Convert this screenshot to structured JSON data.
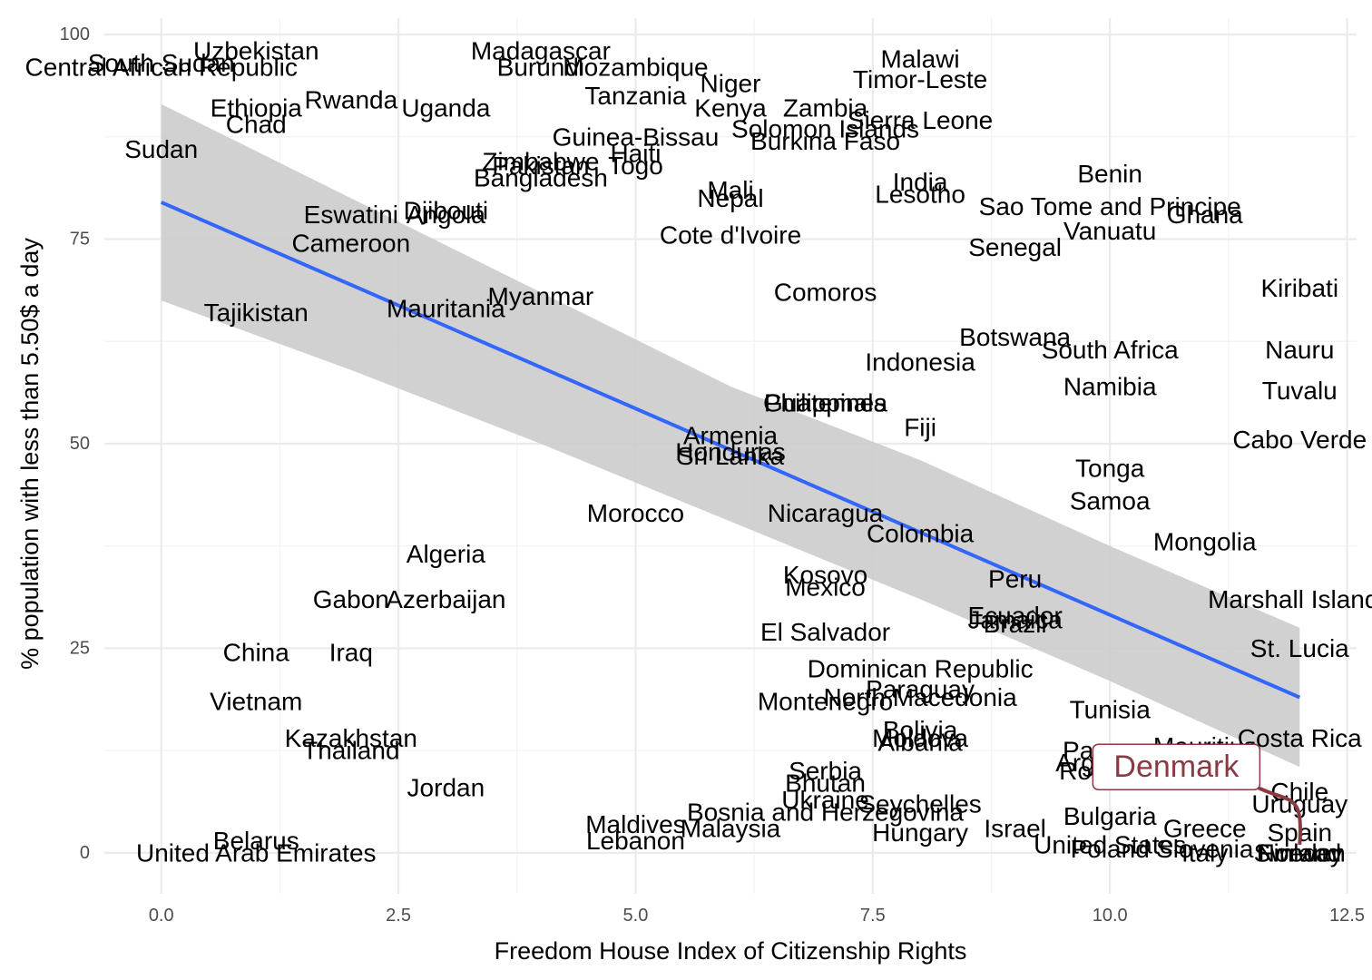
{
  "chart_data": {
    "type": "scatter",
    "title": "",
    "xlabel": "Freedom House Index of Citizenship Rights",
    "ylabel": "% population with less than 5.50$ a day",
    "xlim": [
      -0.6,
      12.6
    ],
    "ylim": [
      -5,
      102
    ],
    "x_ticks": [
      0.0,
      2.5,
      5.0,
      7.5,
      10.0,
      12.5
    ],
    "x_tick_labels": [
      "0.0",
      "2.5",
      "5.0",
      "7.5",
      "10.0",
      "12.5"
    ],
    "y_ticks": [
      0,
      25,
      50,
      75,
      100
    ],
    "y_tick_labels": [
      "0",
      "25",
      "50",
      "75",
      "100"
    ],
    "grid": true,
    "trend_line": {
      "x": [
        0,
        12
      ],
      "y": [
        79.5,
        19.0
      ],
      "color": "#3366ff"
    },
    "confidence_band": {
      "x": [
        0,
        2,
        4,
        6,
        8,
        10,
        12
      ],
      "lower": [
        67.5,
        59.0,
        50.0,
        40.5,
        31.0,
        21.0,
        10.5
      ],
      "upper": [
        91.5,
        80.0,
        68.5,
        57.0,
        48.0,
        37.5,
        27.5
      ],
      "color": "#cccccc"
    },
    "highlight": {
      "label": "Denmark",
      "color": "#8b3a44",
      "point": [
        12,
        1.0
      ],
      "label_position": [
        10.7,
        10.5
      ]
    },
    "points": [
      {
        "label": "Uzbekistan",
        "x": 1.0,
        "y": 98.0
      },
      {
        "label": "South Sudan",
        "x": 0.0,
        "y": 96.5
      },
      {
        "label": "Central African Republic",
        "x": 0.0,
        "y": 96.0
      },
      {
        "label": "Rwanda",
        "x": 2.0,
        "y": 92.0
      },
      {
        "label": "Ethiopia",
        "x": 1.0,
        "y": 91.0
      },
      {
        "label": "Chad",
        "x": 1.0,
        "y": 89.0
      },
      {
        "label": "Uganda",
        "x": 3.0,
        "y": 91.0
      },
      {
        "label": "Sudan",
        "x": 0.0,
        "y": 86.0
      },
      {
        "label": "Madagascar",
        "x": 4.0,
        "y": 98.0
      },
      {
        "label": "Burundi",
        "x": 4.0,
        "y": 96.0
      },
      {
        "label": "Mozambique",
        "x": 5.0,
        "y": 96.0
      },
      {
        "label": "Niger",
        "x": 6.0,
        "y": 94.0
      },
      {
        "label": "Tanzania",
        "x": 5.0,
        "y": 92.5
      },
      {
        "label": "Kenya",
        "x": 6.0,
        "y": 91.0
      },
      {
        "label": "Zambia",
        "x": 7.0,
        "y": 91.0
      },
      {
        "label": "Malawi",
        "x": 8.0,
        "y": 97.0
      },
      {
        "label": "Timor-Leste",
        "x": 8.0,
        "y": 94.5
      },
      {
        "label": "Sierra Leone",
        "x": 8.0,
        "y": 89.5
      },
      {
        "label": "Solomon Islands",
        "x": 7.0,
        "y": 88.5
      },
      {
        "label": "Burkina Faso",
        "x": 7.0,
        "y": 87.0
      },
      {
        "label": "Guinea-Bissau",
        "x": 5.0,
        "y": 87.5
      },
      {
        "label": "Zimbabwe",
        "x": 4.0,
        "y": 84.5
      },
      {
        "label": "Haiti",
        "x": 5.0,
        "y": 85.5
      },
      {
        "label": "Pakistan",
        "x": 4.0,
        "y": 84.0
      },
      {
        "label": "Togo",
        "x": 5.0,
        "y": 84.0
      },
      {
        "label": "Bangladesh",
        "x": 4.0,
        "y": 82.5
      },
      {
        "label": "Benin",
        "x": 10.0,
        "y": 83.0
      },
      {
        "label": "India",
        "x": 8.0,
        "y": 82.0
      },
      {
        "label": "Lesotho",
        "x": 8.0,
        "y": 80.5
      },
      {
        "label": "Mali",
        "x": 6.0,
        "y": 81.0
      },
      {
        "label": "Nepal",
        "x": 6.0,
        "y": 80.0
      },
      {
        "label": "Sao Tome and Principe",
        "x": 10.0,
        "y": 79.0
      },
      {
        "label": "Ghana",
        "x": 11.0,
        "y": 78.0
      },
      {
        "label": "Vanuatu",
        "x": 10.0,
        "y": 76.0
      },
      {
        "label": "Eswatini",
        "x": 2.0,
        "y": 78.0
      },
      {
        "label": "Djibouti",
        "x": 3.0,
        "y": 78.5
      },
      {
        "label": "Angola",
        "x": 3.0,
        "y": 78.0
      },
      {
        "label": "Cameroon",
        "x": 2.0,
        "y": 74.5
      },
      {
        "label": "Cote d'Ivoire",
        "x": 6.0,
        "y": 75.5
      },
      {
        "label": "Senegal",
        "x": 9.0,
        "y": 74.0
      },
      {
        "label": "Kiribati",
        "x": 12.0,
        "y": 69.0
      },
      {
        "label": "Comoros",
        "x": 7.0,
        "y": 68.5
      },
      {
        "label": "Myanmar",
        "x": 4.0,
        "y": 68.0
      },
      {
        "label": "Mauritania",
        "x": 3.0,
        "y": 66.5
      },
      {
        "label": "Tajikistan",
        "x": 1.0,
        "y": 66.0
      },
      {
        "label": "Botswana",
        "x": 9.0,
        "y": 63.0
      },
      {
        "label": "South Africa",
        "x": 10.0,
        "y": 61.5
      },
      {
        "label": "Nauru",
        "x": 12.0,
        "y": 61.5
      },
      {
        "label": "Indonesia",
        "x": 8.0,
        "y": 60.0
      },
      {
        "label": "Namibia",
        "x": 10.0,
        "y": 57.0
      },
      {
        "label": "Tuvalu",
        "x": 12.0,
        "y": 56.5
      },
      {
        "label": "Philippines",
        "x": 7.0,
        "y": 55.0
      },
      {
        "label": "Guatemala",
        "x": 7.0,
        "y": 55.0
      },
      {
        "label": "Fiji",
        "x": 8.0,
        "y": 52.0
      },
      {
        "label": "Armenia",
        "x": 6.0,
        "y": 51.0
      },
      {
        "label": "Cabo Verde",
        "x": 12.0,
        "y": 50.5
      },
      {
        "label": "Honduras",
        "x": 6.0,
        "y": 49.0
      },
      {
        "label": "Sri Lanka",
        "x": 6.0,
        "y": 48.5
      },
      {
        "label": "Tonga",
        "x": 10.0,
        "y": 47.0
      },
      {
        "label": "Samoa",
        "x": 10.0,
        "y": 43.0
      },
      {
        "label": "Morocco",
        "x": 5.0,
        "y": 41.5
      },
      {
        "label": "Nicaragua",
        "x": 7.0,
        "y": 41.5
      },
      {
        "label": "Colombia",
        "x": 8.0,
        "y": 39.0
      },
      {
        "label": "Mongolia",
        "x": 11.0,
        "y": 38.0
      },
      {
        "label": "Algeria",
        "x": 3.0,
        "y": 36.5
      },
      {
        "label": "Kosovo",
        "x": 7.0,
        "y": 34.0
      },
      {
        "label": "Peru",
        "x": 9.0,
        "y": 33.5
      },
      {
        "label": "Mexico",
        "x": 7.0,
        "y": 32.5
      },
      {
        "label": "Gabon",
        "x": 2.0,
        "y": 31.0
      },
      {
        "label": "Azerbaijan",
        "x": 3.0,
        "y": 31.0
      },
      {
        "label": "Marshall Islands",
        "x": 12.0,
        "y": 31.0
      },
      {
        "label": "Ecuador",
        "x": 9.0,
        "y": 29.0
      },
      {
        "label": "Jamaica",
        "x": 9.0,
        "y": 28.5
      },
      {
        "label": "Brazil",
        "x": 9.0,
        "y": 28.0
      },
      {
        "label": "El Salvador",
        "x": 7.0,
        "y": 27.0
      },
      {
        "label": "St. Lucia",
        "x": 12.0,
        "y": 25.0
      },
      {
        "label": "China",
        "x": 1.0,
        "y": 24.5
      },
      {
        "label": "Iraq",
        "x": 2.0,
        "y": 24.5
      },
      {
        "label": "Dominican Republic",
        "x": 8.0,
        "y": 22.5
      },
      {
        "label": "Paraguay",
        "x": 8.0,
        "y": 20.0
      },
      {
        "label": "North Macedonia",
        "x": 8.0,
        "y": 19.0
      },
      {
        "label": "Montenegro",
        "x": 7.0,
        "y": 18.5
      },
      {
        "label": "Vietnam",
        "x": 1.0,
        "y": 18.5
      },
      {
        "label": "Tunisia",
        "x": 10.0,
        "y": 17.5
      },
      {
        "label": "Kazakhstan",
        "x": 2.0,
        "y": 14.0
      },
      {
        "label": "Bolivia",
        "x": 8.0,
        "y": 15.0
      },
      {
        "label": "Moldova",
        "x": 8.0,
        "y": 14.0
      },
      {
        "label": "Albania",
        "x": 8.0,
        "y": 13.5
      },
      {
        "label": "Costa Rica",
        "x": 12.0,
        "y": 14.0
      },
      {
        "label": "Thailand",
        "x": 2.0,
        "y": 12.5
      },
      {
        "label": "Panama",
        "x": 10.0,
        "y": 12.5
      },
      {
        "label": "Mauritius",
        "x": 11.0,
        "y": 13.0
      },
      {
        "label": "Argentina",
        "x": 10.0,
        "y": 11.0
      },
      {
        "label": "Romania",
        "x": 10.0,
        "y": 10.0
      },
      {
        "label": "Serbia",
        "x": 7.0,
        "y": 10.0
      },
      {
        "label": "Chile",
        "x": 12.0,
        "y": 7.5
      },
      {
        "label": "Jordan",
        "x": 3.0,
        "y": 8.0
      },
      {
        "label": "Bhutan",
        "x": 7.0,
        "y": 8.5
      },
      {
        "label": "Ukraine",
        "x": 7.0,
        "y": 6.5
      },
      {
        "label": "Uruguay",
        "x": 12.0,
        "y": 6.0
      },
      {
        "label": "Seychelles",
        "x": 8.0,
        "y": 6.0
      },
      {
        "label": "Bosnia and Herzegovina",
        "x": 7.0,
        "y": 5.0
      },
      {
        "label": "Bulgaria",
        "x": 10.0,
        "y": 4.5
      },
      {
        "label": "Maldives",
        "x": 5.0,
        "y": 3.5
      },
      {
        "label": "Malaysia",
        "x": 6.0,
        "y": 3.0
      },
      {
        "label": "Israel",
        "x": 9.0,
        "y": 3.0
      },
      {
        "label": "Greece",
        "x": 11.0,
        "y": 3.0
      },
      {
        "label": "Spain",
        "x": 12.0,
        "y": 2.5
      },
      {
        "label": "Hungary",
        "x": 8.0,
        "y": 2.5
      },
      {
        "label": "Belarus",
        "x": 1.0,
        "y": 1.5
      },
      {
        "label": "Lebanon",
        "x": 5.0,
        "y": 1.5
      },
      {
        "label": "United States",
        "x": 10.0,
        "y": 1.0
      },
      {
        "label": "Poland",
        "x": 10.0,
        "y": 0.5
      },
      {
        "label": "United Arab Emirates",
        "x": 1.0,
        "y": 0.0
      },
      {
        "label": "Slovenia",
        "x": 11.0,
        "y": 0.5
      },
      {
        "label": "Italy",
        "x": 11.0,
        "y": 0.0
      },
      {
        "label": "Norway",
        "x": 12.0,
        "y": 0.0
      },
      {
        "label": "Sweden",
        "x": 12.0,
        "y": 0.0
      },
      {
        "label": "Finland",
        "x": 12.0,
        "y": 0.0
      }
    ]
  }
}
